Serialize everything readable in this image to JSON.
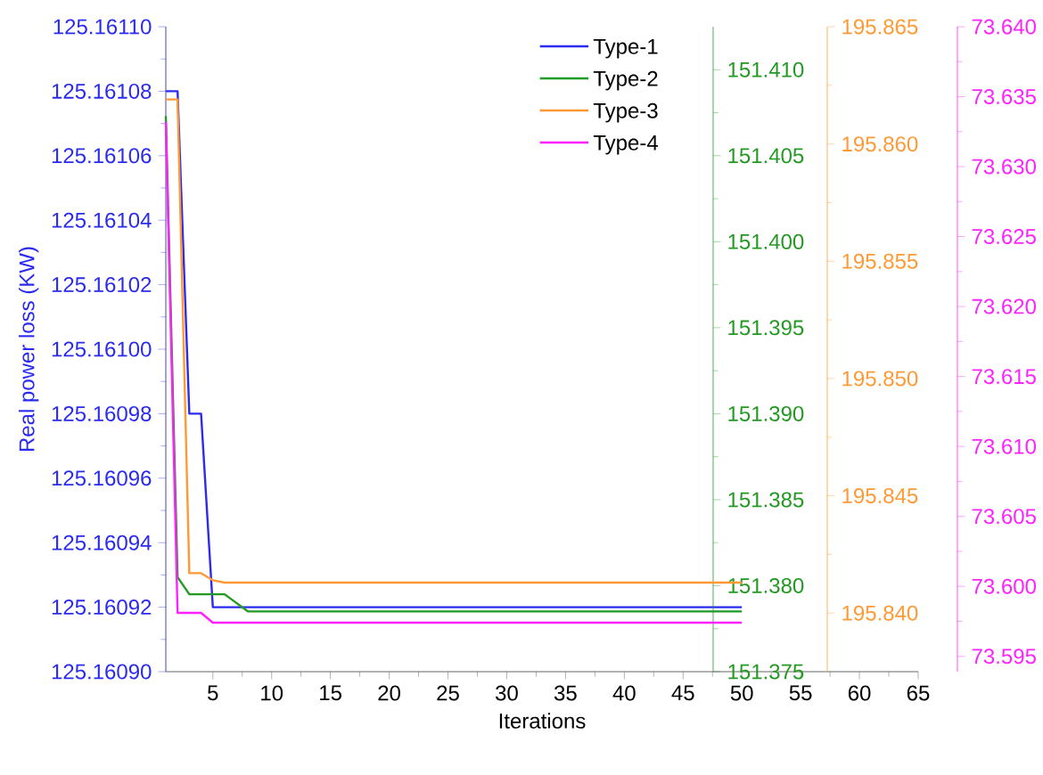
{
  "chart_data": [
    {
      "type": "line",
      "xlabel": "Iterations",
      "ylabel": "Real power loss (KW)",
      "legend": "top right",
      "xlim": [
        1,
        65
      ],
      "xticks": [
        5,
        10,
        15,
        20,
        25,
        30,
        35,
        40,
        45,
        50,
        55,
        60,
        65
      ],
      "ylim": [
        125.1609,
        125.1611
      ],
      "yticks": [
        {
          "value": 125.1609,
          "label": "125.16090"
        },
        {
          "value": 125.16092,
          "label": "125.16092"
        },
        {
          "value": 125.16094,
          "label": "125.16094"
        },
        {
          "value": 125.16096,
          "label": "125.16096"
        },
        {
          "value": 125.16098,
          "label": "125.16098"
        },
        {
          "value": 125.161,
          "label": "125.16100"
        },
        {
          "value": 125.16102,
          "label": "125.16102"
        },
        {
          "value": 125.16104,
          "label": "125.16104"
        },
        {
          "value": 125.16106,
          "label": "125.16106"
        },
        {
          "value": 125.16108,
          "label": "125.16108"
        },
        {
          "value": 125.1611,
          "label": "125.16110"
        }
      ],
      "y2lim": [
        151.375,
        151.4125
      ],
      "y2ticks": [
        {
          "value": 151.375,
          "label": "151.375"
        },
        {
          "value": 151.38,
          "label": "151.380"
        },
        {
          "value": 151.385,
          "label": "151.385"
        },
        {
          "value": 151.39,
          "label": "151.390"
        },
        {
          "value": 151.395,
          "label": "151.395"
        },
        {
          "value": 151.4,
          "label": "151.400"
        },
        {
          "value": 151.405,
          "label": "151.405"
        },
        {
          "value": 151.41,
          "label": "151.410"
        }
      ],
      "y3lim": [
        195.8375,
        195.865
      ],
      "y3ticks": [
        {
          "value": 195.84,
          "label": "195.840"
        },
        {
          "value": 195.845,
          "label": "195.845"
        },
        {
          "value": 195.85,
          "label": "195.850"
        },
        {
          "value": 195.855,
          "label": "195.855"
        },
        {
          "value": 195.86,
          "label": "195.860"
        },
        {
          "value": 195.865,
          "label": "195.865"
        }
      ],
      "series": [
        {
          "name": "Type-1",
          "color": "#2b2bf0",
          "x": [
            1,
            2,
            3,
            4,
            5,
            50
          ],
          "values": [
            125.16108,
            125.16108,
            125.16098,
            125.16098,
            125.16092,
            125.16092
          ]
        },
        {
          "name": "Type-2",
          "color": "#229922",
          "axis": "y2",
          "x": [
            1,
            2,
            3,
            6,
            8,
            50
          ],
          "values": [
            151.4073,
            151.3805,
            151.3795,
            151.3795,
            151.3785,
            151.3785
          ]
        },
        {
          "name": "Type-3",
          "color": "#ff9933",
          "axis": "y3",
          "x": [
            1,
            2,
            3,
            4,
            5,
            6,
            50
          ],
          "values": [
            195.8619,
            195.8619,
            195.8417,
            195.8417,
            195.8414,
            195.8413,
            195.8413
          ]
        }
      ]
    },
    {
      "type": "line",
      "legend": "top right",
      "tick_labels": "y",
      "xlim": [
        1,
        65
      ],
      "ylim": [
        73.5939,
        73.64
      ],
      "yticks": [
        {
          "value": 73.595,
          "label": "73.595"
        },
        {
          "value": 73.6,
          "label": "73.600"
        },
        {
          "value": 73.605,
          "label": "73.605"
        },
        {
          "value": 73.61,
          "label": "73.610"
        },
        {
          "value": 73.615,
          "label": "73.615"
        },
        {
          "value": 73.62,
          "label": "73.620"
        },
        {
          "value": 73.625,
          "label": "73.625"
        },
        {
          "value": 73.63,
          "label": "73.630"
        },
        {
          "value": 73.635,
          "label": "73.635"
        },
        {
          "value": 73.64,
          "label": "73.640"
        }
      ],
      "series": [
        {
          "name": "Type-4",
          "color": "#ff22ff",
          "x": [
            1,
            2,
            4,
            5,
            50
          ],
          "values": [
            73.6332,
            73.5981,
            73.5981,
            73.5974,
            73.5974
          ]
        }
      ]
    }
  ]
}
